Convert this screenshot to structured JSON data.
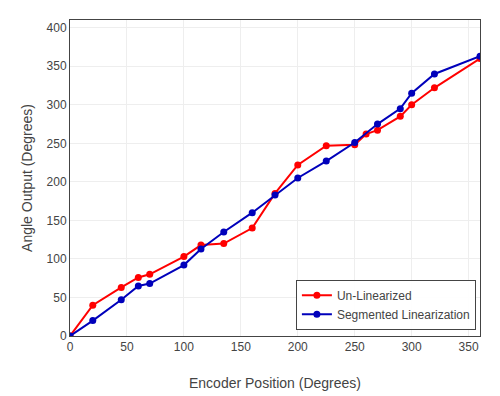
{
  "chart_data": {
    "type": "line",
    "x_label": "Encoder Position (Degrees)",
    "y_label": "Angle Output (Degrees)",
    "series": [
      {
        "name": "Un-Linearized",
        "color": "#FF0000",
        "marker": "circle",
        "line_style": "solid",
        "x": [
          0,
          20,
          45,
          60,
          70,
          100,
          115,
          135,
          160,
          180,
          200,
          225,
          250,
          260,
          270,
          290,
          300,
          320,
          360
        ],
        "values": [
          0,
          40,
          63,
          76,
          80,
          103,
          118,
          120,
          140,
          185,
          222,
          247,
          248,
          262,
          267,
          285,
          300,
          322,
          360
        ]
      },
      {
        "name": "Segmented Linearization",
        "color": "#0000BB",
        "marker": "circle",
        "line_style": "solid",
        "x": [
          0,
          20,
          45,
          60,
          70,
          100,
          115,
          135,
          160,
          180,
          200,
          225,
          250,
          270,
          290,
          300,
          320,
          360
        ],
        "values": [
          0,
          20,
          47,
          65,
          68,
          92,
          113,
          135,
          160,
          183,
          205,
          227,
          251,
          275,
          295,
          315,
          340,
          363
        ]
      }
    ],
    "xlim": [
      0,
      360
    ],
    "ylim": [
      0,
      410
    ],
    "xticks": [
      0,
      50,
      100,
      150,
      200,
      250,
      300,
      350
    ],
    "yticks": [
      0,
      50,
      100,
      150,
      200,
      250,
      300,
      350,
      400
    ],
    "grid": true,
    "legend": "lower right"
  }
}
